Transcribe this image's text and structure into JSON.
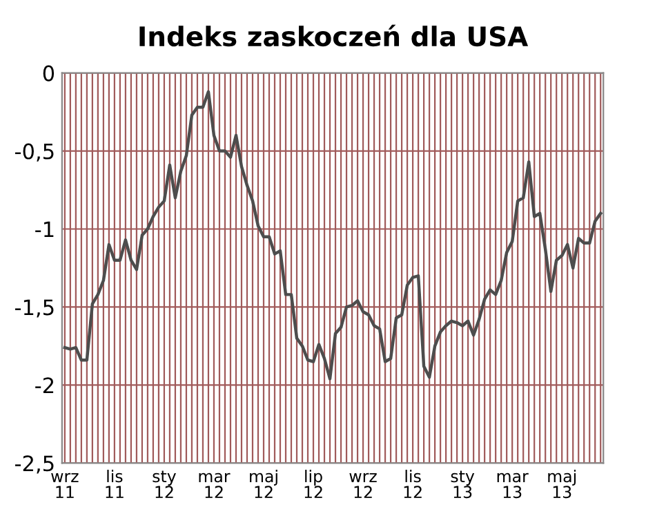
{
  "chart_data": {
    "type": "line",
    "title": "Indeks zaskoczeń dla USA",
    "categories": [
      "wrz 11",
      null,
      null,
      null,
      null,
      null,
      null,
      null,
      null,
      "lis 11",
      null,
      null,
      null,
      null,
      null,
      null,
      null,
      null,
      "sty 12",
      null,
      null,
      null,
      null,
      null,
      null,
      null,
      null,
      "mar 12",
      null,
      null,
      null,
      null,
      null,
      null,
      null,
      null,
      "maj 12",
      null,
      null,
      null,
      null,
      null,
      null,
      null,
      null,
      "lip 12",
      null,
      null,
      null,
      null,
      null,
      null,
      null,
      null,
      "wrz 12",
      null,
      null,
      null,
      null,
      null,
      null,
      null,
      null,
      "lis 12",
      null,
      null,
      null,
      null,
      null,
      null,
      null,
      null,
      "sty 13",
      null,
      null,
      null,
      null,
      null,
      null,
      null,
      null,
      "mar 13",
      null,
      null,
      null,
      null,
      null,
      null,
      null,
      null,
      "maj 13",
      null,
      null,
      null,
      null,
      null,
      null,
      null
    ],
    "series": [
      {
        "color": "#4d4d4d",
        "values": [
          -1.76,
          -1.77,
          -1.76,
          -1.84,
          -1.84,
          -1.48,
          -1.42,
          -1.33,
          -1.1,
          -1.2,
          -1.2,
          -1.07,
          -1.2,
          -1.26,
          -1.04,
          -1.0,
          -0.92,
          -0.86,
          -0.82,
          -0.59,
          -0.8,
          -0.63,
          -0.53,
          -0.27,
          -0.22,
          -0.22,
          -0.12,
          -0.4,
          -0.5,
          -0.5,
          -0.54,
          -0.4,
          -0.6,
          -0.72,
          -0.82,
          -0.98,
          -1.05,
          -1.05,
          -1.16,
          -1.14,
          -1.42,
          -1.42,
          -1.7,
          -1.75,
          -1.84,
          -1.85,
          -1.74,
          -1.83,
          -1.96,
          -1.67,
          -1.63,
          -1.5,
          -1.49,
          -1.46,
          -1.53,
          -1.55,
          -1.62,
          -1.64,
          -1.85,
          -1.83,
          -1.57,
          -1.55,
          -1.36,
          -1.31,
          -1.3,
          -1.88,
          -1.95,
          -1.75,
          -1.66,
          -1.62,
          -1.59,
          -1.6,
          -1.62,
          -1.59,
          -1.68,
          -1.58,
          -1.45,
          -1.39,
          -1.42,
          -1.33,
          -1.15,
          -1.08,
          -0.82,
          -0.8,
          -0.57,
          -0.92,
          -0.9,
          -1.13,
          -1.4,
          -1.2,
          -1.17,
          -1.1,
          -1.25,
          -1.06,
          -1.09,
          -1.09,
          -0.95,
          -0.9
        ]
      }
    ],
    "ylim": [
      -2.5,
      0
    ],
    "yticks": [
      {
        "value": 0,
        "label": "0"
      },
      {
        "value": -0.5,
        "label": "-0,5"
      },
      {
        "value": -1,
        "label": "-1"
      },
      {
        "value": -1.5,
        "label": "-1,5"
      },
      {
        "value": -2,
        "label": "-2"
      },
      {
        "value": -2.5,
        "label": "-2,5"
      }
    ],
    "grid": true,
    "marker": "none",
    "line_style": "solid"
  }
}
